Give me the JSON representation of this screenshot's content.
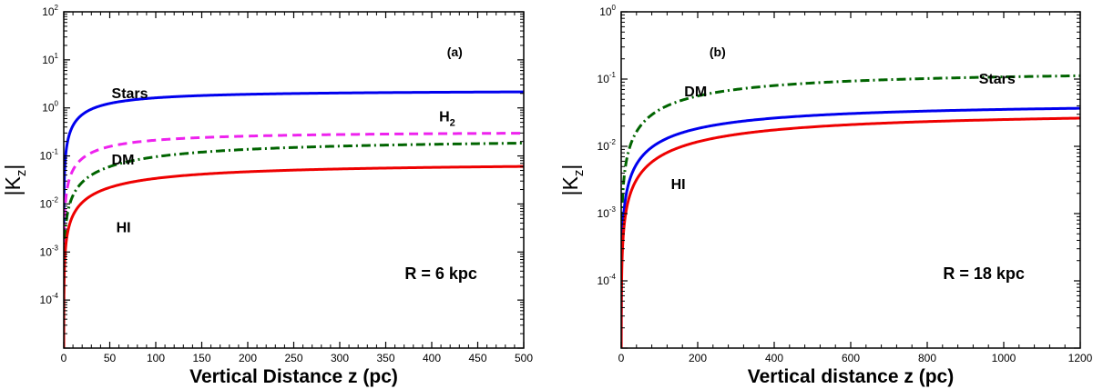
{
  "chart_data": [
    {
      "type": "line",
      "panel_label": "(a)",
      "radius_label": "R = 6 kpc",
      "xlabel": "Vertical Distance  z (pc)",
      "ylabel": {
        "base": "|K",
        "sub": "z",
        "end": "|"
      },
      "y_scale": "log",
      "xlim": [
        0,
        500
      ],
      "ylim": [
        1e-05,
        100
      ],
      "x_ticks": [
        0,
        50,
        100,
        150,
        200,
        250,
        300,
        350,
        400,
        450,
        500
      ],
      "y_tick_exponents": [
        -4,
        -3,
        -2,
        -1,
        0,
        1,
        2
      ],
      "series": [
        {
          "name": "Stars",
          "color": "#0000ee",
          "dash": "solid",
          "A": 2.35,
          "z0": 45
        },
        {
          "name": "H2",
          "color": "#ee22ee",
          "dash": "dashed",
          "A": 0.33,
          "z0": 55
        },
        {
          "name": "DM",
          "color": "#006400",
          "dash": "dashdot",
          "A": 0.24,
          "z0": 150
        },
        {
          "name": "HI",
          "color": "#ee0000",
          "dash": "solid",
          "A": 0.075,
          "z0": 120
        }
      ],
      "annotations": [
        {
          "text": "Stars",
          "x": 52,
          "y": 1.6
        },
        {
          "text": "H",
          "sub": "2",
          "x": 408,
          "y": 0.52
        },
        {
          "text": "DM",
          "x": 52,
          "y": 0.067
        },
        {
          "text": "HI",
          "x": 57,
          "y": 0.0026
        }
      ]
    },
    {
      "type": "line",
      "panel_label": "(b)",
      "radius_label": "R = 18 kpc",
      "xlabel": "Vertical distance z (pc)",
      "ylabel": {
        "base": "|K",
        "sub": "z",
        "end": "|"
      },
      "y_scale": "log",
      "xlim": [
        0,
        1200
      ],
      "ylim": [
        1e-05,
        1
      ],
      "x_ticks": [
        0,
        200,
        400,
        600,
        800,
        1000,
        1200
      ],
      "y_tick_exponents": [
        -4,
        -3,
        -2,
        -1,
        0
      ],
      "series": [
        {
          "name": "DM",
          "color": "#006400",
          "dash": "dashdot",
          "A": 0.14,
          "z0": 300
        },
        {
          "name": "Stars",
          "color": "#0000ee",
          "dash": "solid",
          "A": 0.046,
          "z0": 300
        },
        {
          "name": "HI",
          "color": "#ee0000",
          "dash": "solid",
          "A": 0.035,
          "z0": 400
        }
      ],
      "annotations": [
        {
          "text": "DM",
          "x": 165,
          "y": 0.055
        },
        {
          "text": "Stars",
          "x": 935,
          "y": 0.085
        },
        {
          "text": "HI",
          "x": 130,
          "y": 0.0023
        }
      ]
    }
  ]
}
